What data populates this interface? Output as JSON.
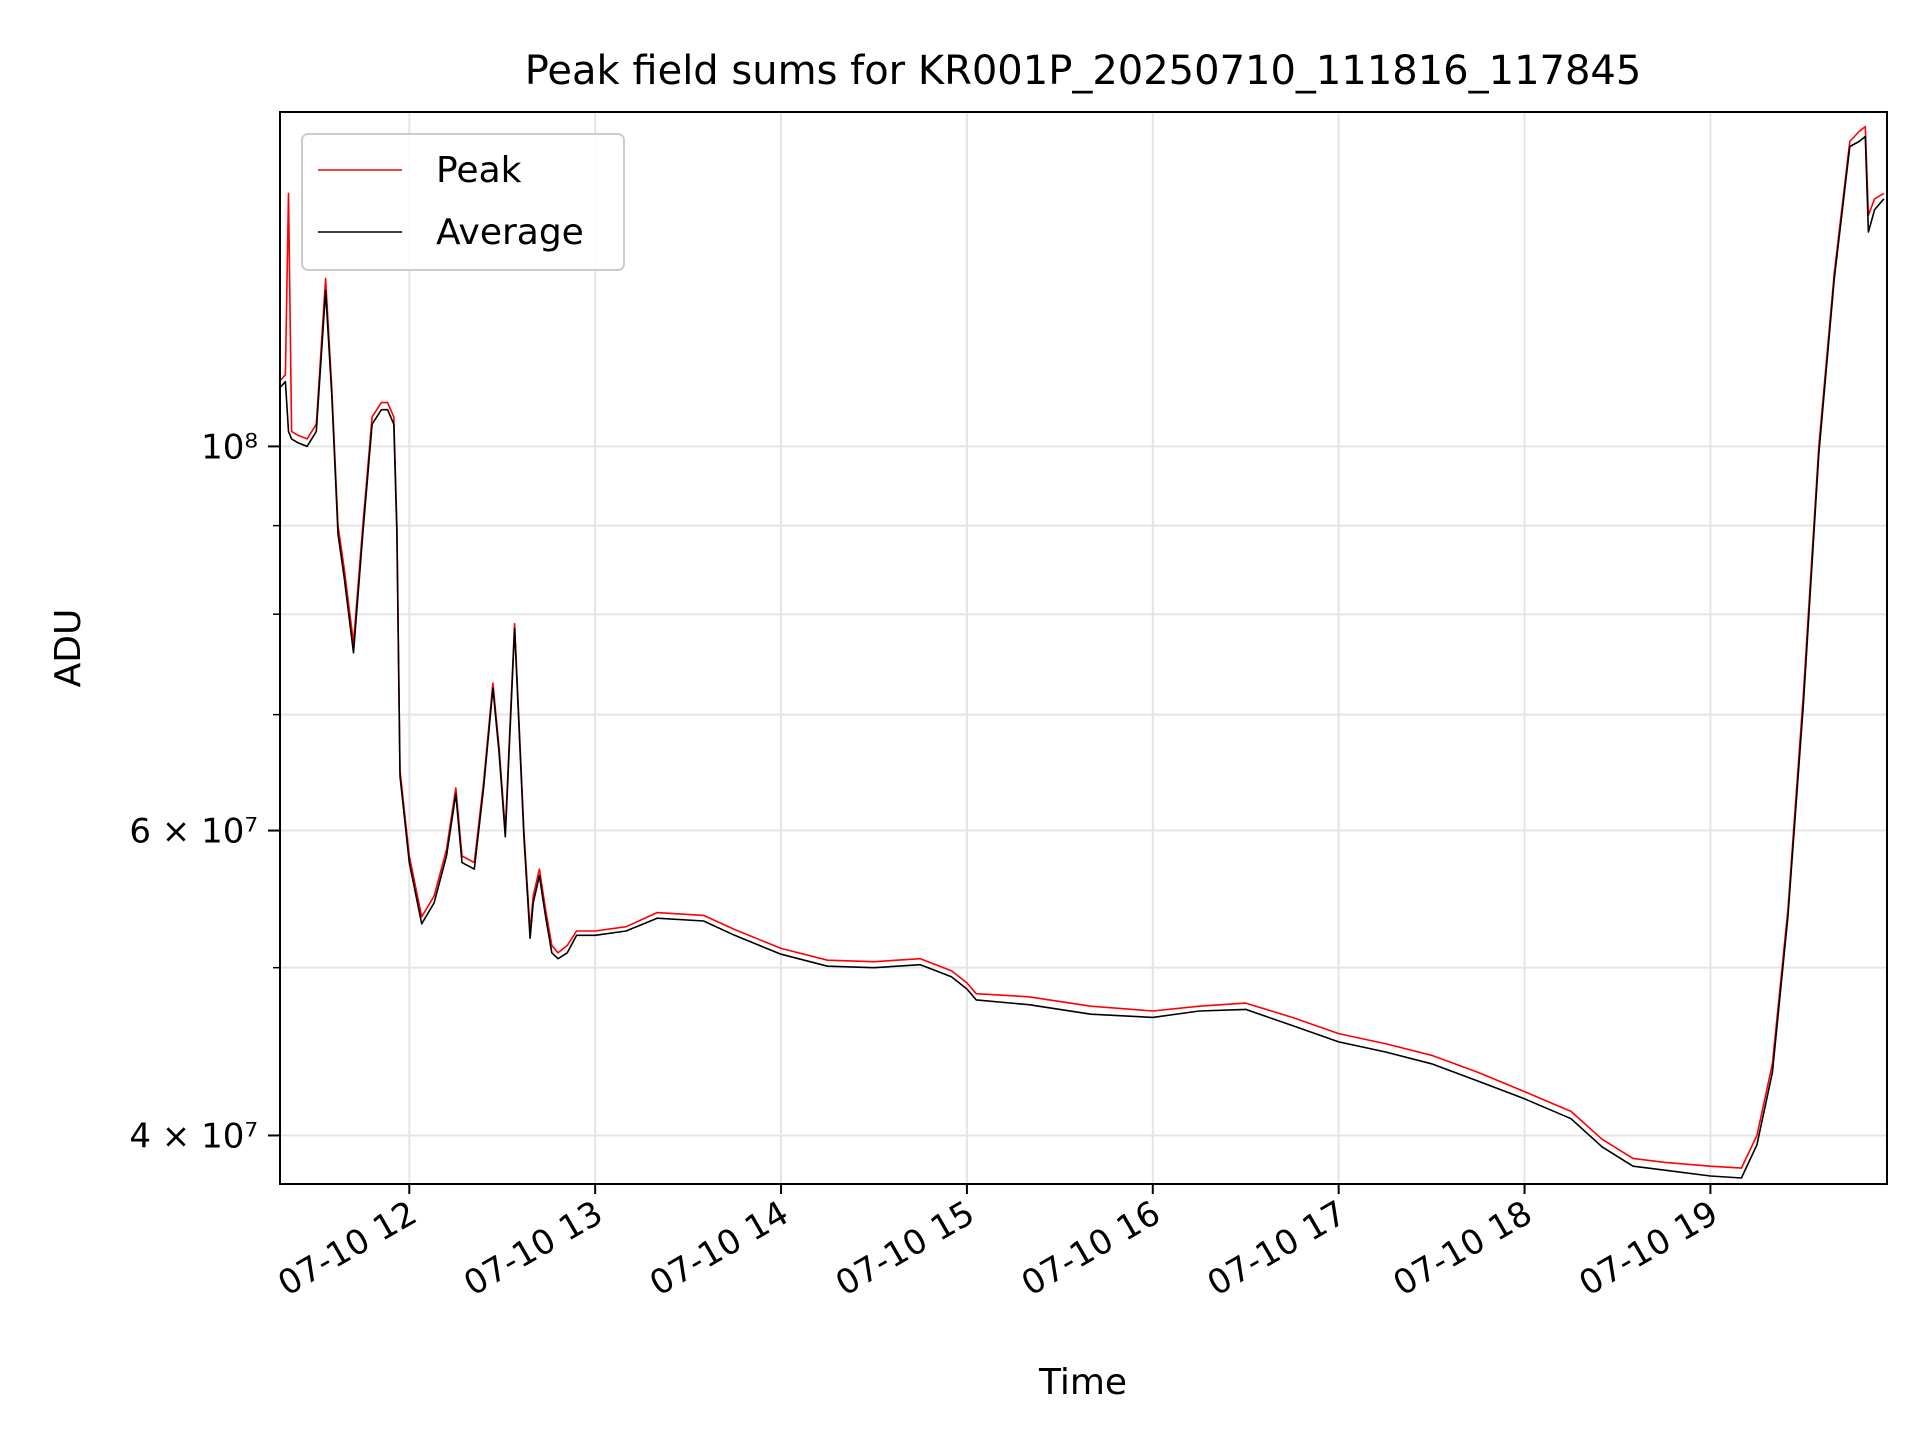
{
  "chart_data": {
    "type": "line",
    "title": "Peak field sums for KR001P_20250710_111816_117845",
    "xlabel": "Time",
    "ylabel": "ADU",
    "xlim": [
      "2025-07-10T11:18:16",
      "2025-07-10T19:57:00"
    ],
    "ylim": [
      37500000,
      156000000
    ],
    "yscale": "log",
    "grid": true,
    "legend": "top-left",
    "x_ticks": [
      {
        "x": "2025-07-10T12:00",
        "label": "07-10 12"
      },
      {
        "x": "2025-07-10T13:00",
        "label": "07-10 13"
      },
      {
        "x": "2025-07-10T14:00",
        "label": "07-10 14"
      },
      {
        "x": "2025-07-10T15:00",
        "label": "07-10 15"
      },
      {
        "x": "2025-07-10T16:00",
        "label": "07-10 16"
      },
      {
        "x": "2025-07-10T17:00",
        "label": "07-10 17"
      },
      {
        "x": "2025-07-10T18:00",
        "label": "07-10 18"
      },
      {
        "x": "2025-07-10T19:00",
        "label": "07-10 19"
      }
    ],
    "y_ticks_major": [
      {
        "y": 40000000,
        "label": "4 × 10⁷"
      },
      {
        "y": 60000000,
        "label": "6 × 10⁷"
      },
      {
        "y": 100000000,
        "label": "10⁸"
      }
    ],
    "y_ticks_minor": [
      50000000,
      70000000,
      80000000,
      90000000
    ],
    "series": [
      {
        "name": "Peak",
        "color": "#ff0000",
        "x": [
          "2025-07-10T11:18",
          "2025-07-10T11:20",
          "2025-07-10T11:21",
          "2025-07-10T11:22",
          "2025-07-10T11:24",
          "2025-07-10T11:27",
          "2025-07-10T11:30",
          "2025-07-10T11:33",
          "2025-07-10T11:35",
          "2025-07-10T11:37",
          "2025-07-10T11:39",
          "2025-07-10T11:42",
          "2025-07-10T11:45",
          "2025-07-10T11:48",
          "2025-07-10T11:51",
          "2025-07-10T11:53",
          "2025-07-10T11:55",
          "2025-07-10T11:56",
          "2025-07-10T11:57",
          "2025-07-10T12:00",
          "2025-07-10T12:04",
          "2025-07-10T12:08",
          "2025-07-10T12:12",
          "2025-07-10T12:15",
          "2025-07-10T12:17",
          "2025-07-10T12:21",
          "2025-07-10T12:24",
          "2025-07-10T12:27",
          "2025-07-10T12:29",
          "2025-07-10T12:31",
          "2025-07-10T12:34",
          "2025-07-10T12:37",
          "2025-07-10T12:39",
          "2025-07-10T12:40",
          "2025-07-10T12:42",
          "2025-07-10T12:44",
          "2025-07-10T12:46",
          "2025-07-10T12:48",
          "2025-07-10T12:51",
          "2025-07-10T12:54",
          "2025-07-10T13:00",
          "2025-07-10T13:10",
          "2025-07-10T13:20",
          "2025-07-10T13:35",
          "2025-07-10T13:45",
          "2025-07-10T14:00",
          "2025-07-10T14:15",
          "2025-07-10T14:30",
          "2025-07-10T14:45",
          "2025-07-10T14:55",
          "2025-07-10T15:00",
          "2025-07-10T15:03",
          "2025-07-10T15:20",
          "2025-07-10T15:40",
          "2025-07-10T16:00",
          "2025-07-10T16:15",
          "2025-07-10T16:30",
          "2025-07-10T16:45",
          "2025-07-10T17:00",
          "2025-07-10T17:15",
          "2025-07-10T17:30",
          "2025-07-10T17:45",
          "2025-07-10T18:00",
          "2025-07-10T18:15",
          "2025-07-10T18:25",
          "2025-07-10T18:35",
          "2025-07-10T18:45",
          "2025-07-10T19:00",
          "2025-07-10T19:10",
          "2025-07-10T19:15",
          "2025-07-10T19:20",
          "2025-07-10T19:25",
          "2025-07-10T19:30",
          "2025-07-10T19:35",
          "2025-07-10T19:40",
          "2025-07-10T19:45",
          "2025-07-10T19:48",
          "2025-07-10T19:50",
          "2025-07-10T19:51",
          "2025-07-10T19:53",
          "2025-07-10T19:56"
        ],
        "values": [
          109000000,
          110000000,
          140000000,
          102000000,
          101500000,
          101000000,
          103000000,
          125000000,
          108000000,
          90000000,
          85000000,
          77000000,
          90000000,
          104000000,
          106000000,
          106000000,
          104000000,
          90000000,
          65000000,
          58000000,
          53500000,
          55000000,
          58500000,
          63500000,
          58000000,
          57500000,
          64000000,
          73000000,
          67000000,
          60000000,
          79000000,
          60000000,
          52500000,
          55000000,
          57000000,
          54000000,
          51500000,
          51000000,
          51500000,
          52500000,
          52500000,
          52800000,
          53800000,
          53600000,
          52600000,
          51300000,
          50500000,
          50400000,
          50600000,
          49800000,
          49000000,
          48300000,
          48100000,
          47500000,
          47200000,
          47500000,
          47700000,
          46800000,
          45800000,
          45200000,
          44500000,
          43500000,
          42400000,
          41300000,
          39800000,
          38800000,
          38600000,
          38400000,
          38300000,
          40000000,
          44000000,
          54000000,
          72000000,
          100000000,
          126000000,
          150000000,
          152000000,
          153000000,
          136000000,
          139000000,
          140000000
        ]
      },
      {
        "name": "Average",
        "color": "#000000",
        "x": [
          "2025-07-10T11:18",
          "2025-07-10T11:20",
          "2025-07-10T11:21",
          "2025-07-10T11:22",
          "2025-07-10T11:24",
          "2025-07-10T11:27",
          "2025-07-10T11:30",
          "2025-07-10T11:33",
          "2025-07-10T11:35",
          "2025-07-10T11:37",
          "2025-07-10T11:39",
          "2025-07-10T11:42",
          "2025-07-10T11:45",
          "2025-07-10T11:48",
          "2025-07-10T11:51",
          "2025-07-10T11:53",
          "2025-07-10T11:55",
          "2025-07-10T11:56",
          "2025-07-10T11:57",
          "2025-07-10T12:00",
          "2025-07-10T12:04",
          "2025-07-10T12:08",
          "2025-07-10T12:12",
          "2025-07-10T12:15",
          "2025-07-10T12:17",
          "2025-07-10T12:21",
          "2025-07-10T12:24",
          "2025-07-10T12:27",
          "2025-07-10T12:29",
          "2025-07-10T12:31",
          "2025-07-10T12:34",
          "2025-07-10T12:37",
          "2025-07-10T12:39",
          "2025-07-10T12:40",
          "2025-07-10T12:42",
          "2025-07-10T12:44",
          "2025-07-10T12:46",
          "2025-07-10T12:48",
          "2025-07-10T12:51",
          "2025-07-10T12:54",
          "2025-07-10T13:00",
          "2025-07-10T13:10",
          "2025-07-10T13:20",
          "2025-07-10T13:35",
          "2025-07-10T13:45",
          "2025-07-10T14:00",
          "2025-07-10T14:15",
          "2025-07-10T14:30",
          "2025-07-10T14:45",
          "2025-07-10T14:55",
          "2025-07-10T15:00",
          "2025-07-10T15:03",
          "2025-07-10T15:20",
          "2025-07-10T15:40",
          "2025-07-10T16:00",
          "2025-07-10T16:15",
          "2025-07-10T16:30",
          "2025-07-10T16:45",
          "2025-07-10T17:00",
          "2025-07-10T17:15",
          "2025-07-10T17:30",
          "2025-07-10T17:45",
          "2025-07-10T18:00",
          "2025-07-10T18:15",
          "2025-07-10T18:25",
          "2025-07-10T18:35",
          "2025-07-10T18:45",
          "2025-07-10T19:00",
          "2025-07-10T19:10",
          "2025-07-10T19:15",
          "2025-07-10T19:20",
          "2025-07-10T19:25",
          "2025-07-10T19:30",
          "2025-07-10T19:35",
          "2025-07-10T19:40",
          "2025-07-10T19:45",
          "2025-07-10T19:48",
          "2025-07-10T19:50",
          "2025-07-10T19:51",
          "2025-07-10T19:53",
          "2025-07-10T19:56"
        ],
        "values": [
          108000000,
          109000000,
          102000000,
          101000000,
          100500000,
          100000000,
          102000000,
          123000000,
          107000000,
          89000000,
          84000000,
          76000000,
          89000000,
          103000000,
          105000000,
          105000000,
          103000000,
          89000000,
          64500000,
          57500000,
          53000000,
          54500000,
          58000000,
          63000000,
          57500000,
          57000000,
          63500000,
          72500000,
          66500000,
          59500000,
          78500000,
          59500000,
          52000000,
          54500000,
          56500000,
          53500000,
          51000000,
          50600000,
          51000000,
          52200000,
          52200000,
          52500000,
          53400000,
          53200000,
          52200000,
          50900000,
          50100000,
          50000000,
          50200000,
          49400000,
          48600000,
          47900000,
          47600000,
          47000000,
          46800000,
          47200000,
          47300000,
          46300000,
          45300000,
          44700000,
          44000000,
          43000000,
          42000000,
          40900000,
          39400000,
          38400000,
          38200000,
          37900000,
          37800000,
          39500000,
          43500000,
          53500000,
          71000000,
          99000000,
          125000000,
          149000000,
          150000000,
          151000000,
          133000000,
          137000000,
          139000000
        ]
      }
    ]
  }
}
